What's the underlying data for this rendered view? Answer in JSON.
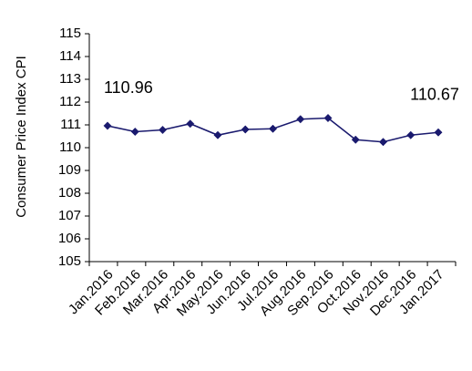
{
  "chart_data": {
    "type": "line",
    "title": "",
    "xlabel": "",
    "ylabel": "Consumer Price Index CPI",
    "ylim": [
      105,
      115
    ],
    "yticks": [
      105,
      106,
      107,
      108,
      109,
      110,
      111,
      112,
      113,
      114,
      115
    ],
    "grid": false,
    "legend": "none",
    "categories": [
      "Jan.2016",
      "Feb.2016",
      "Mar.2016",
      "Apr.2016",
      "May.2016",
      "Jun.2016",
      "Jul.2016",
      "Aug.2016",
      "Sep.2016",
      "Oct.2016",
      "Nov.2016",
      "Dec.2016",
      "Jan.2017"
    ],
    "series": [
      {
        "color": "#1a1a6e",
        "values": [
          110.96,
          110.7,
          110.78,
          111.05,
          110.55,
          110.8,
          110.83,
          111.25,
          111.3,
          110.35,
          110.25,
          110.55,
          110.67
        ]
      }
    ],
    "annotations": [
      {
        "text": "110.96",
        "index": 0
      },
      {
        "text": "110.67",
        "index": 12
      }
    ]
  }
}
